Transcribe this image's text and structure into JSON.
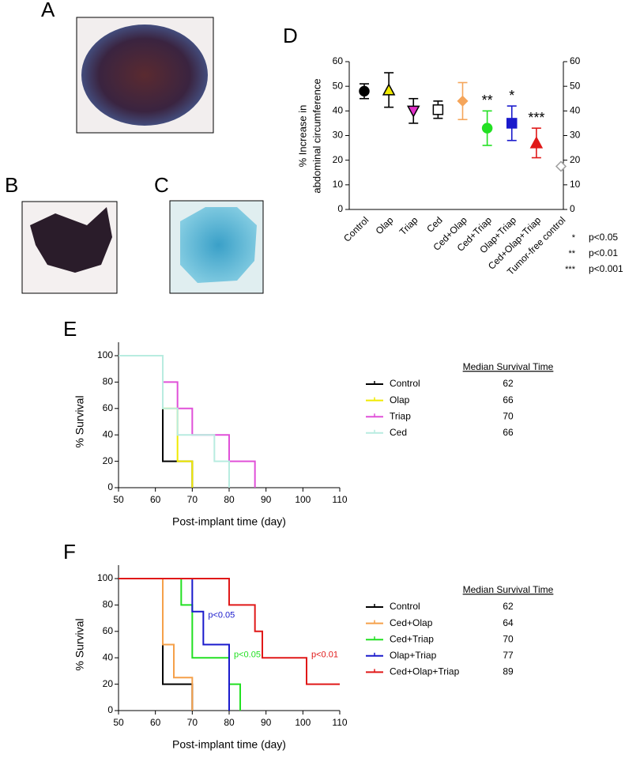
{
  "images": [
    {
      "label": "A"
    },
    {
      "label": "B"
    },
    {
      "label": "C"
    }
  ],
  "chart_data": [
    {
      "type": "dot",
      "label": "D",
      "ylabel": [
        "% Increase in",
        "abdominal circumference"
      ],
      "categories": [
        "Control",
        "Olap",
        "Triap",
        "Ced",
        "Ced+Olap",
        "Ced+Triap",
        "Olap+Triap",
        "Ced+Olap+Triap",
        "Tumor-free control"
      ],
      "values": [
        48,
        48.5,
        40,
        40.5,
        44,
        33,
        35,
        27,
        17.5
      ],
      "errors": [
        3,
        7,
        5,
        3.5,
        7.5,
        7,
        7,
        6,
        null
      ],
      "markers": [
        "circle",
        "triangle-up",
        "triangle-down",
        "square",
        "diamond",
        "circle",
        "square",
        "triangle-up",
        "diamond"
      ],
      "colors": [
        "#000000",
        "#000000",
        "#000000",
        "#000000",
        "#f5a55a",
        "#22e022",
        "#1a1acc",
        "#e01818",
        "#a0a0a0"
      ],
      "fills": [
        "#000000",
        "#f0ea00",
        "#e030c8",
        "#ffffff",
        "#f5a55a",
        "#22e022",
        "#1a1acc",
        "#e01818",
        "#ffffff"
      ],
      "significance": [
        null,
        null,
        null,
        null,
        null,
        "**",
        "*",
        "***",
        null
      ],
      "significance_key": [
        {
          "mark": "*",
          "label": "p<0.05"
        },
        {
          "mark": "**",
          "label": "p<0.01"
        },
        {
          "mark": "***",
          "label": "p<0.001"
        }
      ],
      "ylim": [
        0,
        60
      ],
      "yticks": [
        0,
        10,
        20,
        30,
        40,
        50,
        60
      ],
      "y2lim": [
        0,
        60
      ],
      "y2ticks": [
        0,
        10,
        20,
        30,
        40,
        50,
        60
      ]
    },
    {
      "type": "survival",
      "label": "E",
      "xlabel": "Post-implant time (day)",
      "ylabel": "% Survival",
      "xlim": [
        50,
        110
      ],
      "xticks": [
        50,
        60,
        70,
        80,
        90,
        100,
        110
      ],
      "ylim": [
        0,
        100
      ],
      "yticks": [
        0,
        20,
        40,
        60,
        80,
        100
      ],
      "median_header": "Median Survival Time",
      "series": [
        {
          "name": "Control",
          "color": "#000000",
          "median": 62,
          "x": [
            50,
            62,
            70
          ],
          "values": [
            100,
            20,
            0
          ]
        },
        {
          "name": "Olap",
          "color": "#f0ea00",
          "median": 66,
          "x": [
            50,
            62,
            66,
            70
          ],
          "values": [
            100,
            60,
            20,
            0
          ]
        },
        {
          "name": "Triap",
          "color": "#e050d8",
          "median": 70,
          "x": [
            50,
            62,
            66,
            70,
            80,
            87
          ],
          "values": [
            100,
            80,
            60,
            40,
            20,
            0
          ]
        },
        {
          "name": "Ced",
          "color": "#b8ece0",
          "median": 66,
          "x": [
            50,
            62,
            66,
            76,
            80
          ],
          "values": [
            100,
            60,
            40,
            20,
            0
          ]
        }
      ]
    },
    {
      "type": "survival",
      "label": "F",
      "xlabel": "Post-implant time (day)",
      "ylabel": "% Survival",
      "xlim": [
        50,
        110
      ],
      "xticks": [
        50,
        60,
        70,
        80,
        90,
        100,
        110
      ],
      "ylim": [
        0,
        100
      ],
      "yticks": [
        0,
        20,
        40,
        60,
        80,
        100
      ],
      "median_header": "Median Survival Time",
      "series": [
        {
          "name": "Control",
          "color": "#000000",
          "median": 62,
          "x": [
            50,
            62,
            70
          ],
          "values": [
            100,
            20,
            0
          ]
        },
        {
          "name": "Ced+Olap",
          "color": "#f5a04a",
          "median": 64,
          "x": [
            50,
            62,
            65,
            70
          ],
          "values": [
            100,
            50,
            25,
            0
          ]
        },
        {
          "name": "Ced+Triap",
          "color": "#22e022",
          "median": 70,
          "annotation": "p<0.05",
          "x": [
            50,
            67,
            70,
            80,
            83
          ],
          "values": [
            100,
            80,
            40,
            20,
            0
          ]
        },
        {
          "name": "Olap+Triap",
          "color": "#1a1acc",
          "median": 77,
          "annotation": "p<0.05",
          "x": [
            50,
            70,
            73,
            80
          ],
          "values": [
            100,
            75,
            50,
            0
          ]
        },
        {
          "name": "Ced+Olap+Triap",
          "color": "#e01818",
          "median": 89,
          "annotation": "p<0.01",
          "x": [
            50,
            80,
            87,
            89,
            101,
            110
          ],
          "values": [
            100,
            80,
            60,
            40,
            20,
            20
          ]
        }
      ]
    }
  ]
}
